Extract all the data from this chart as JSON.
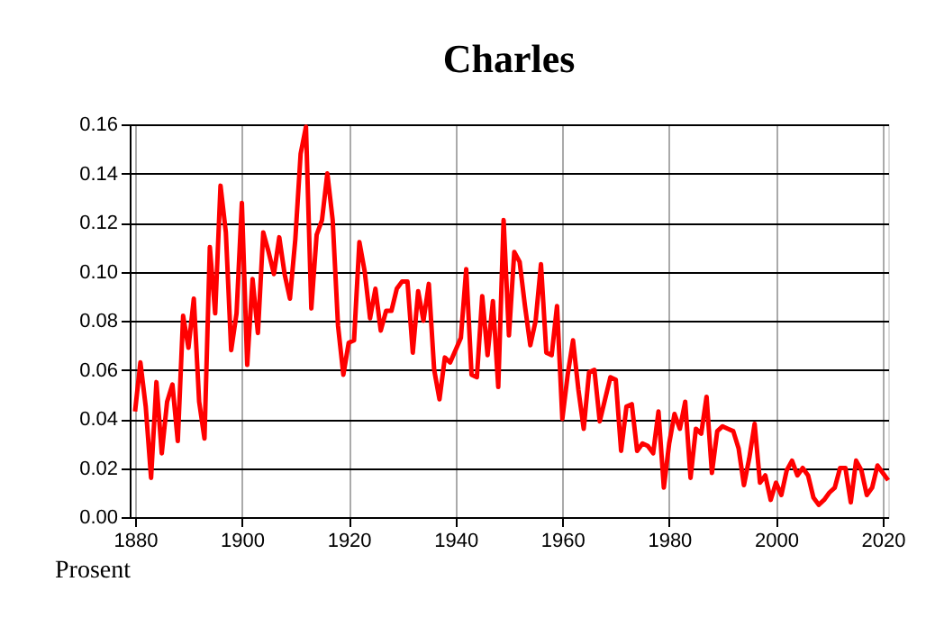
{
  "chart_data": {
    "type": "line",
    "title": "Charles",
    "ylabel": "Prosent",
    "x": [
      1880,
      1881,
      1882,
      1883,
      1884,
      1885,
      1886,
      1887,
      1888,
      1889,
      1890,
      1891,
      1892,
      1893,
      1894,
      1895,
      1896,
      1897,
      1898,
      1899,
      1900,
      1901,
      1902,
      1903,
      1904,
      1905,
      1906,
      1907,
      1908,
      1909,
      1910,
      1911,
      1912,
      1913,
      1914,
      1915,
      1916,
      1917,
      1918,
      1919,
      1920,
      1921,
      1922,
      1923,
      1924,
      1925,
      1926,
      1927,
      1928,
      1929,
      1930,
      1931,
      1932,
      1933,
      1934,
      1935,
      1936,
      1937,
      1938,
      1939,
      1940,
      1941,
      1942,
      1943,
      1944,
      1945,
      1946,
      1947,
      1948,
      1949,
      1950,
      1951,
      1952,
      1953,
      1954,
      1955,
      1956,
      1957,
      1958,
      1959,
      1960,
      1961,
      1962,
      1963,
      1964,
      1965,
      1966,
      1967,
      1968,
      1969,
      1970,
      1971,
      1972,
      1973,
      1974,
      1975,
      1976,
      1977,
      1978,
      1979,
      1980,
      1981,
      1982,
      1983,
      1984,
      1985,
      1986,
      1987,
      1988,
      1989,
      1990,
      1991,
      1992,
      1993,
      1994,
      1995,
      1996,
      1997,
      1998,
      1999,
      2000,
      2001,
      2002,
      2003,
      2004,
      2005,
      2006,
      2007,
      2008,
      2009,
      2010,
      2011,
      2012,
      2013,
      2014,
      2015,
      2016,
      2017,
      2018,
      2019,
      2020,
      2021
    ],
    "series": [
      {
        "color": "#ff0000",
        "values": [
          0.043,
          0.063,
          0.045,
          0.016,
          0.055,
          0.026,
          0.047,
          0.054,
          0.031,
          0.082,
          0.069,
          0.089,
          0.047,
          0.032,
          0.11,
          0.083,
          0.135,
          0.116,
          0.068,
          0.083,
          0.128,
          0.062,
          0.097,
          0.075,
          0.116,
          0.108,
          0.099,
          0.114,
          0.099,
          0.089,
          0.113,
          0.148,
          0.159,
          0.085,
          0.115,
          0.121,
          0.14,
          0.121,
          0.078,
          0.058,
          0.071,
          0.072,
          0.112,
          0.1,
          0.081,
          0.093,
          0.076,
          0.084,
          0.084,
          0.093,
          0.096,
          0.096,
          0.067,
          0.092,
          0.08,
          0.095,
          0.06,
          0.048,
          0.065,
          0.063,
          0.068,
          0.073,
          0.101,
          0.058,
          0.057,
          0.09,
          0.066,
          0.088,
          0.053,
          0.121,
          0.074,
          0.108,
          0.104,
          0.086,
          0.07,
          0.08,
          0.103,
          0.067,
          0.066,
          0.086,
          0.04,
          0.058,
          0.072,
          0.052,
          0.036,
          0.059,
          0.06,
          0.039,
          0.048,
          0.057,
          0.056,
          0.027,
          0.045,
          0.046,
          0.027,
          0.03,
          0.029,
          0.026,
          0.043,
          0.012,
          0.03,
          0.042,
          0.036,
          0.047,
          0.016,
          0.036,
          0.034,
          0.049,
          0.018,
          0.035,
          0.037,
          0.036,
          0.035,
          0.028,
          0.013,
          0.024,
          0.038,
          0.014,
          0.017,
          0.007,
          0.014,
          0.009,
          0.019,
          0.023,
          0.017,
          0.02,
          0.017,
          0.008,
          0.005,
          0.007,
          0.01,
          0.012,
          0.02,
          0.02,
          0.006,
          0.023,
          0.019,
          0.009,
          0.012,
          0.021,
          0.018,
          0.015
        ]
      }
    ],
    "xlim": [
      1879,
      2021
    ],
    "xticks": [
      1880,
      1900,
      1920,
      1940,
      1960,
      1980,
      2000,
      2020
    ],
    "ylim": [
      0,
      0.16
    ],
    "yticks": [
      {
        "value": 0,
        "label": "0.00"
      },
      {
        "value": 0.02,
        "label": "0.02"
      },
      {
        "value": 0.04,
        "label": "0.04"
      },
      {
        "value": 0.06,
        "label": "0.06"
      },
      {
        "value": 0.08,
        "label": "0.08"
      },
      {
        "value": 0.1,
        "label": "0.10"
      },
      {
        "value": 0.12,
        "label": "0.12"
      },
      {
        "value": 0.14,
        "label": "0.14"
      },
      {
        "value": 0.16,
        "label": "0.16"
      }
    ],
    "grid": true,
    "marker": "none",
    "line_style": "solid"
  }
}
